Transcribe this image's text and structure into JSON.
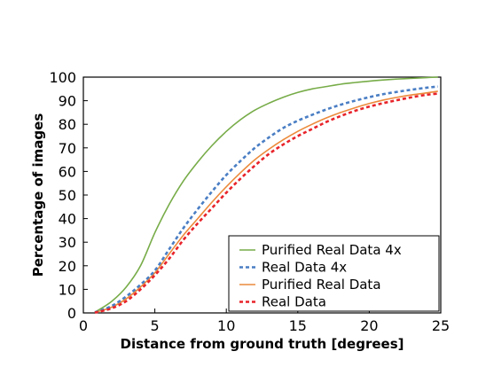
{
  "chart_data": {
    "type": "line",
    "xlabel": "Distance from ground truth [degrees]",
    "ylabel": "Percentage of images",
    "xlim": [
      0,
      25
    ],
    "ylim": [
      0,
      100
    ],
    "xticks": [
      "0",
      "5",
      "10",
      "15",
      "20",
      "25"
    ],
    "yticks": [
      "0",
      "10",
      "20",
      "30",
      "40",
      "50",
      "60",
      "70",
      "80",
      "90",
      "100"
    ],
    "grid": false,
    "legend_position": "bottom-right",
    "series": [
      {
        "name": "Purified Real Data 4x",
        "color": "#77ac48",
        "style": "solid",
        "x": [
          0.8,
          1,
          2,
          3,
          4,
          5,
          6,
          7,
          8,
          9,
          10,
          11,
          12,
          13,
          14,
          15,
          16,
          17,
          18,
          19,
          20,
          21,
          22,
          23,
          24,
          24.8
        ],
        "y": [
          0.5,
          1,
          5,
          11,
          20,
          34,
          46,
          56,
          64,
          71,
          77,
          82,
          86,
          89,
          91.5,
          93.5,
          95,
          96,
          97,
          97.7,
          98.3,
          98.8,
          99.2,
          99.5,
          99.8,
          100
        ]
      },
      {
        "name": "Real Data 4x",
        "color": "#4a7ec4",
        "style": "dashed",
        "x": [
          0.8,
          1,
          2,
          3,
          4,
          5,
          6,
          7,
          8,
          9,
          10,
          11,
          12,
          13,
          14,
          15,
          16,
          17,
          18,
          19,
          20,
          21,
          22,
          23,
          24,
          24.8
        ],
        "y": [
          0.3,
          0.6,
          3,
          7,
          12,
          18,
          27,
          36,
          44,
          51.5,
          58.5,
          64.5,
          70,
          74.5,
          78.5,
          81.5,
          84,
          86.3,
          88.3,
          90,
          91.5,
          92.8,
          93.8,
          94.7,
          95.5,
          96
        ]
      },
      {
        "name": "Purified Real Data",
        "color": "#ec8a3b",
        "style": "solid",
        "x": [
          0.8,
          1,
          2,
          3,
          4,
          5,
          6,
          7,
          8,
          9,
          10,
          11,
          12,
          13,
          14,
          15,
          16,
          17,
          18,
          19,
          20,
          21,
          22,
          23,
          24,
          24.8
        ],
        "y": [
          0.2,
          0.5,
          2.5,
          6,
          11,
          17,
          25,
          33,
          40,
          47,
          53.5,
          59.5,
          65,
          69.5,
          73.5,
          77,
          80,
          82.7,
          85,
          87,
          88.8,
          90.3,
          91.5,
          92.5,
          93.3,
          94
        ]
      },
      {
        "name": "Real Data",
        "color": "#e8232a",
        "style": "dashed",
        "x": [
          0.8,
          1,
          2,
          3,
          4,
          5,
          6,
          7,
          8,
          9,
          10,
          11,
          12,
          13,
          14,
          15,
          16,
          17,
          18,
          19,
          20,
          21,
          22,
          23,
          24,
          24.8
        ],
        "y": [
          0.2,
          0.4,
          2,
          5,
          10,
          16,
          23,
          31,
          38,
          44.5,
          51,
          57,
          62.5,
          67.5,
          71.5,
          75,
          78,
          81,
          83.5,
          85.7,
          87.5,
          89,
          90.3,
          91.5,
          92.5,
          93
        ]
      }
    ]
  }
}
